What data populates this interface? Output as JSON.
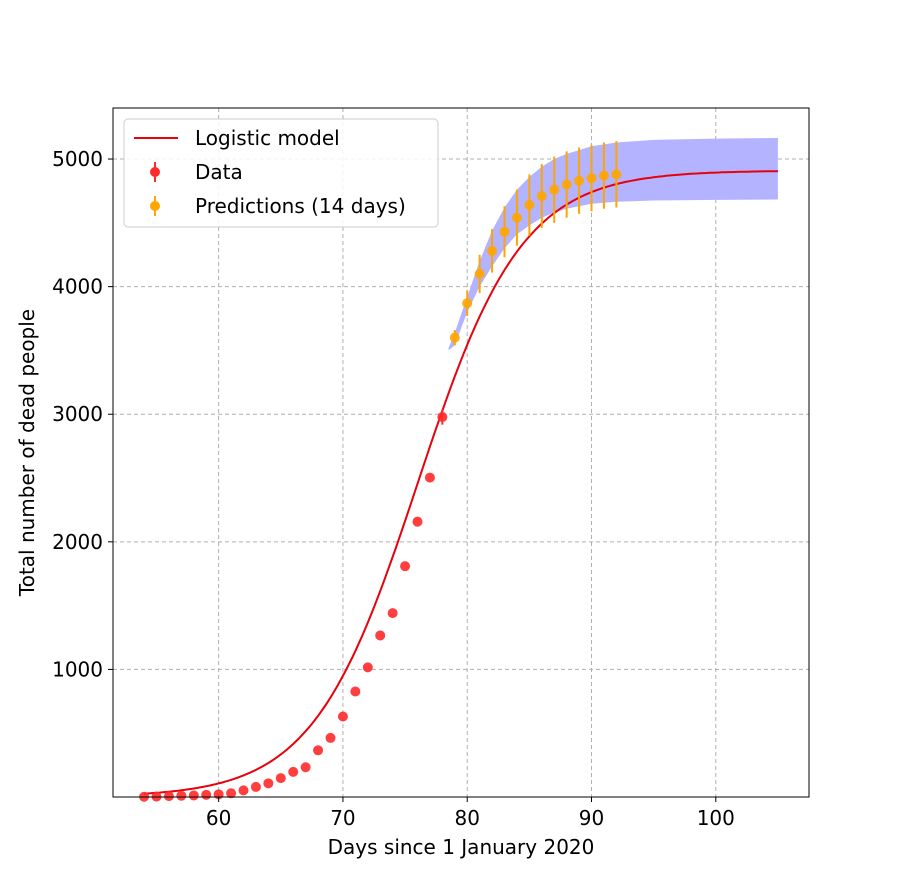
{
  "chart_data": {
    "type": "line",
    "xlabel": "Days since 1 January 2020",
    "ylabel": "Total number of dead people",
    "xlim": [
      51.5,
      107.5
    ],
    "ylim": [
      0,
      5400
    ],
    "x_ticks": [
      60,
      70,
      80,
      90,
      100
    ],
    "y_ticks": [
      1000,
      2000,
      3000,
      4000,
      5000
    ],
    "grid": true,
    "legend_position": "top-left",
    "colors": {
      "model": "#e8000b",
      "data": "#ff2a2a",
      "predictions": "#ffa500",
      "band": "#b3b3ff"
    },
    "model": {
      "name": "Logistic model",
      "a": 4.2,
      "b": 76.0,
      "c": 4910,
      "x_range": [
        54,
        105
      ]
    },
    "band": {
      "x_range": [
        78.5,
        105
      ],
      "lower": [
        [
          78.5,
          3500
        ],
        [
          79,
          3540
        ],
        [
          80,
          3800
        ],
        [
          81,
          4000
        ],
        [
          82,
          4160
        ],
        [
          83,
          4300
        ],
        [
          84,
          4410
        ],
        [
          85,
          4480
        ],
        [
          86,
          4540
        ],
        [
          87,
          4580
        ],
        [
          88,
          4610
        ],
        [
          89,
          4630
        ],
        [
          90,
          4650
        ],
        [
          92,
          4665
        ],
        [
          95,
          4675
        ],
        [
          100,
          4680
        ],
        [
          105,
          4683
        ]
      ],
      "upper": [
        [
          78.5,
          3520
        ],
        [
          79,
          3640
        ],
        [
          80,
          3920
        ],
        [
          81,
          4200
        ],
        [
          82,
          4440
        ],
        [
          83,
          4620
        ],
        [
          84,
          4760
        ],
        [
          85,
          4860
        ],
        [
          86,
          4940
        ],
        [
          87,
          5000
        ],
        [
          88,
          5040
        ],
        [
          89,
          5070
        ],
        [
          90,
          5100
        ],
        [
          92,
          5130
        ],
        [
          95,
          5150
        ],
        [
          100,
          5160
        ],
        [
          105,
          5165
        ]
      ]
    },
    "series": [
      {
        "name": "Data",
        "x": [
          54,
          55,
          56,
          57,
          58,
          59,
          60,
          61,
          62,
          63,
          64,
          65,
          66,
          67,
          68,
          69,
          70,
          71,
          72,
          73,
          74,
          75,
          76,
          77,
          78
        ],
        "y": [
          2,
          3,
          7,
          10,
          12,
          17,
          21,
          29,
          52,
          79,
          107,
          148,
          197,
          233,
          366,
          463,
          631,
          827,
          1016,
          1266,
          1441,
          1809,
          2158,
          2503,
          2978
        ],
        "err": [
          0,
          0,
          0,
          0,
          0,
          0,
          0,
          0,
          0,
          0,
          0,
          0,
          0,
          0,
          0,
          0,
          0,
          0,
          0,
          0,
          0,
          0,
          0,
          0,
          60
        ]
      },
      {
        "name": "Predictions (14 days)",
        "x": [
          79,
          80,
          81,
          82,
          83,
          84,
          85,
          86,
          87,
          88,
          89,
          90,
          91,
          92
        ],
        "y": [
          3600,
          3870,
          4100,
          4280,
          4430,
          4540,
          4640,
          4710,
          4760,
          4800,
          4830,
          4850,
          4870,
          4880
        ],
        "err": [
          60,
          100,
          150,
          170,
          200,
          220,
          240,
          250,
          260,
          260,
          260,
          260,
          260,
          260
        ]
      }
    ]
  }
}
